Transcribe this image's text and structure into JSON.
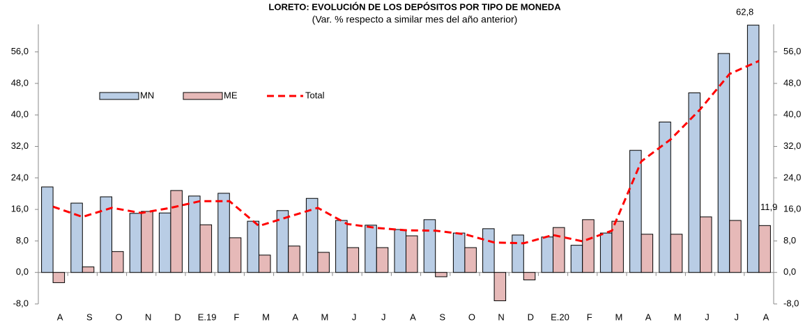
{
  "chart_data": {
    "type": "bar",
    "title": "LORETO: EVOLUCIÓN DE LOS DEPÓSITOS POR TIPO DE MONEDA",
    "subtitle": "(Var. % respecto a similar mes del año anterior)",
    "categories": [
      "A",
      "S",
      "O",
      "N",
      "D",
      "E.19",
      "F",
      "M",
      "A",
      "M",
      "J",
      "J",
      "A",
      "S",
      "O",
      "N",
      "D",
      "E.20",
      "F",
      "M",
      "A",
      "M",
      "J",
      "J",
      "A"
    ],
    "series": [
      {
        "name": "MN",
        "type": "bar",
        "color": "#b9cde5",
        "values": [
          21.7,
          17.6,
          19.2,
          15.0,
          15.1,
          19.4,
          20.1,
          13.0,
          15.7,
          18.8,
          13.2,
          12.0,
          10.9,
          13.4,
          10.0,
          11.1,
          9.5,
          9.0,
          6.9,
          10.0,
          31.0,
          38.2,
          45.6,
          55.6,
          62.8
        ],
        "value_labels": [
          null,
          null,
          null,
          null,
          null,
          null,
          null,
          null,
          null,
          null,
          null,
          null,
          null,
          null,
          null,
          null,
          null,
          null,
          null,
          null,
          null,
          null,
          null,
          null,
          "62,8"
        ]
      },
      {
        "name": "ME",
        "type": "bar",
        "color": "#e6b9b8",
        "values": [
          -2.6,
          1.4,
          5.3,
          15.5,
          20.8,
          12.1,
          8.8,
          4.4,
          6.7,
          5.1,
          6.3,
          6.3,
          9.3,
          -1.1,
          6.3,
          -7.2,
          -1.9,
          11.4,
          13.4,
          13.0,
          9.7,
          9.7,
          14.1,
          13.2,
          11.9
        ],
        "value_labels": [
          null,
          null,
          null,
          null,
          null,
          null,
          null,
          null,
          null,
          null,
          null,
          null,
          null,
          null,
          null,
          null,
          null,
          null,
          null,
          null,
          null,
          null,
          null,
          null,
          "11,9"
        ]
      },
      {
        "name": "Total",
        "type": "line",
        "color": "#ff0000",
        "values": [
          16.7,
          14.1,
          16.4,
          15.1,
          16.4,
          18.1,
          18.1,
          11.8,
          14.1,
          16.4,
          12.3,
          11.3,
          10.7,
          10.6,
          9.7,
          7.6,
          7.4,
          9.5,
          7.9,
          10.6,
          28.2,
          33.8,
          41.4,
          50.4,
          53.7
        ]
      }
    ],
    "ylim": [
      -8,
      63
    ],
    "yticks": [
      {
        "value": -8,
        "label": "-8,0"
      },
      {
        "value": 0,
        "label": "0,0"
      },
      {
        "value": 8,
        "label": "8,0"
      },
      {
        "value": 16,
        "label": "16,0"
      },
      {
        "value": 24,
        "label": "24,0"
      },
      {
        "value": 32,
        "label": "32,0"
      },
      {
        "value": 40,
        "label": "40,0"
      },
      {
        "value": 48,
        "label": "48,0"
      },
      {
        "value": 56,
        "label": "56,0"
      }
    ],
    "y2lim": [
      -8,
      63
    ],
    "y2ticks": [
      {
        "value": -8,
        "label": "-8,0"
      },
      {
        "value": 0,
        "label": "0,0"
      },
      {
        "value": 8,
        "label": "8,0"
      },
      {
        "value": 16,
        "label": "16,0"
      },
      {
        "value": 24,
        "label": "24,0"
      },
      {
        "value": 32,
        "label": "32,0"
      },
      {
        "value": 40,
        "label": "40,0"
      },
      {
        "value": 48,
        "label": "48,0"
      },
      {
        "value": 56,
        "label": "56,0"
      }
    ],
    "legend": "upper-left"
  }
}
